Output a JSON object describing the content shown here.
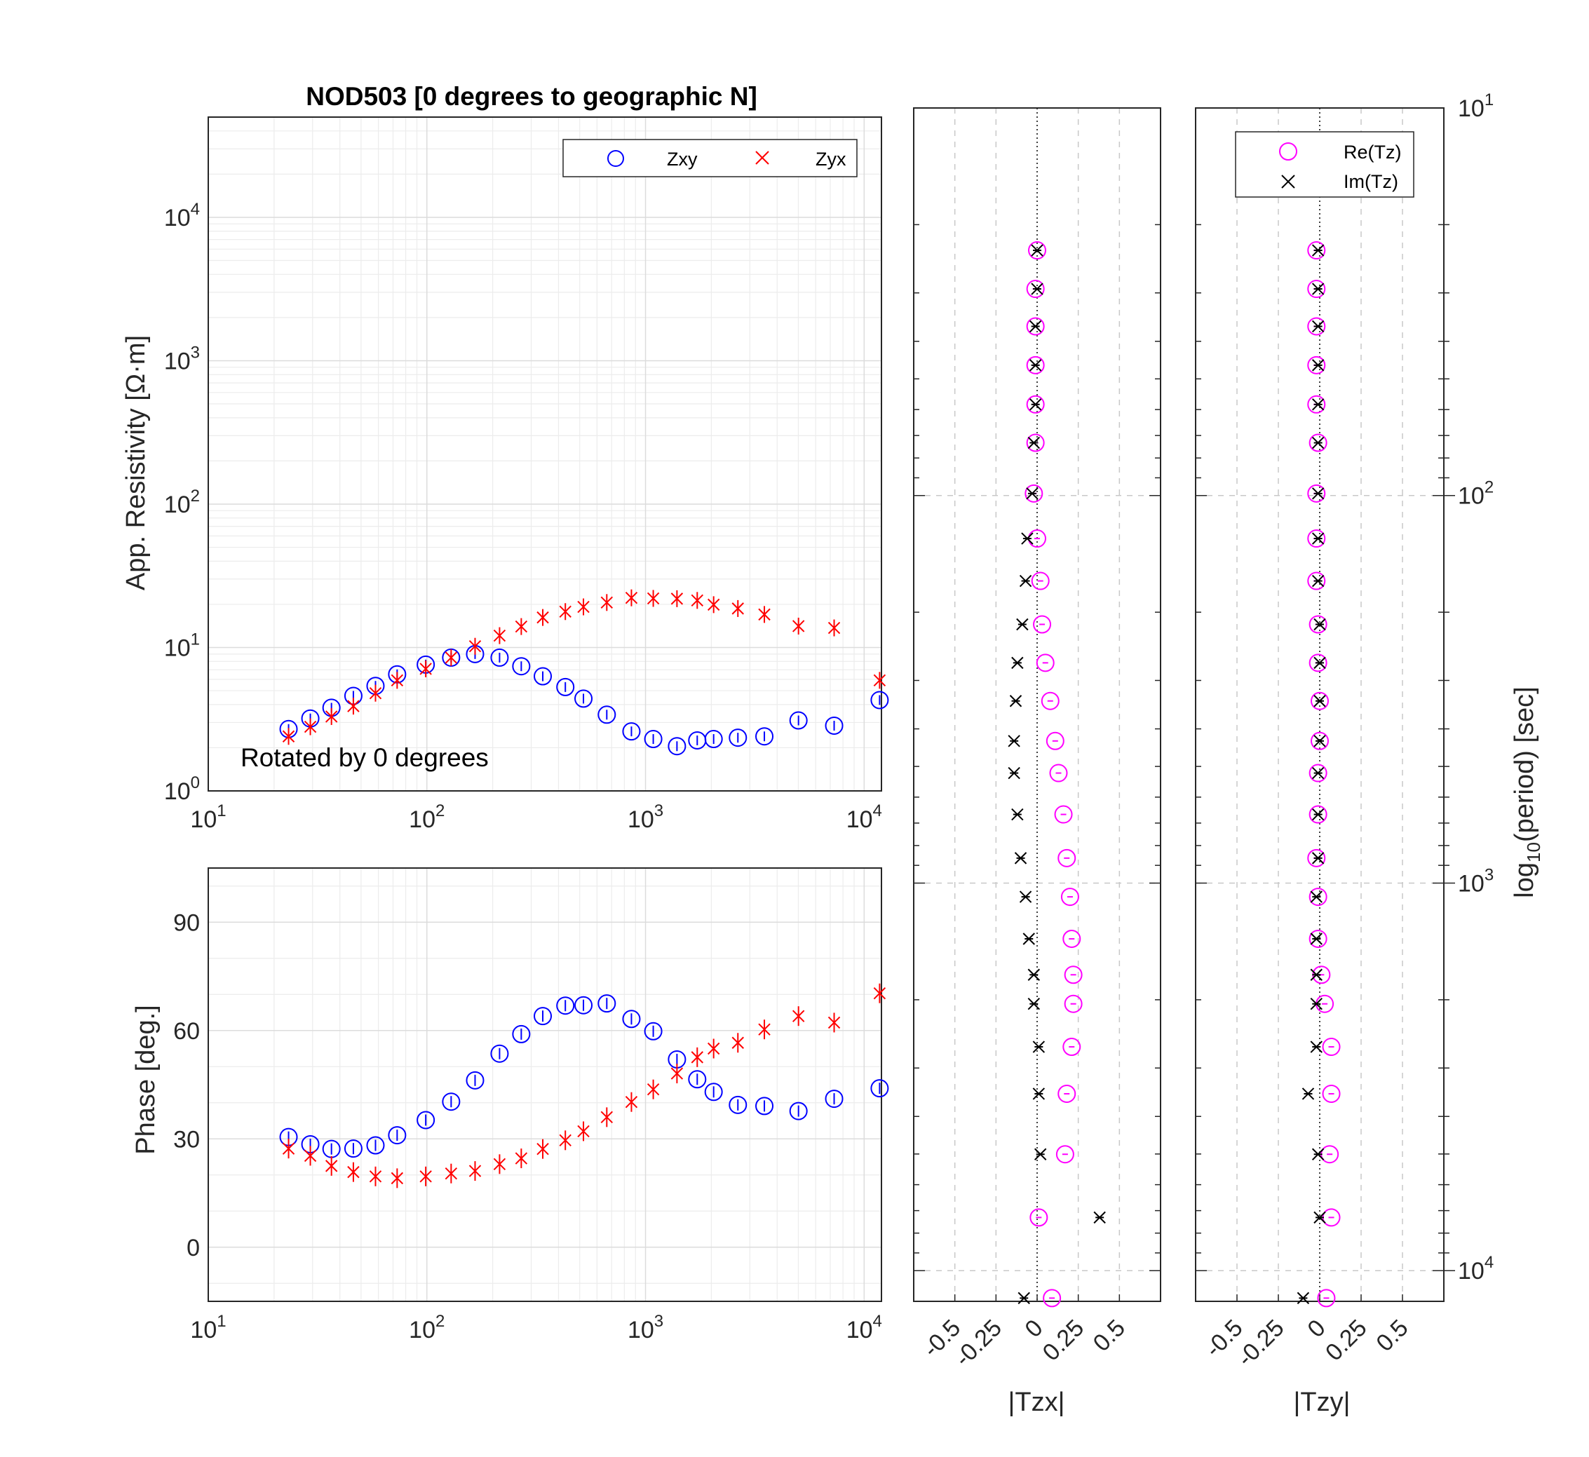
{
  "colors": {
    "zxy": "#0000ff",
    "zyx": "#ff0000",
    "re": "#ff00ff",
    "im": "#000000",
    "axis": "#262626"
  },
  "titles": {
    "main": "NOD503 [0 degrees to geographic N]",
    "annotation": "Rotated by 0 degrees"
  },
  "labels": {
    "res_ylabel": "App. Resistivity [Ω·m]",
    "phase_ylabel": "Phase [deg.]",
    "tzx_xlabel": "|Tzx|",
    "tzy_xlabel": "|Tzy|",
    "period_label_prefix": "log",
    "period_label_sub": "10",
    "period_label_suffix": "(period) [sec]"
  },
  "legend_res": {
    "zxy": "Zxy",
    "zyx": "Zyx"
  },
  "legend_tipper": {
    "re": "Re(Tz)",
    "im": "Im(Tz)"
  },
  "chart_data": [
    {
      "type": "scatter",
      "name": "resistivity",
      "xscale": "log",
      "yscale": "log",
      "xlim": [
        10,
        12000
      ],
      "ylim": [
        1,
        50000
      ],
      "xticks": [
        10,
        100,
        1000,
        10000
      ],
      "yticks": [
        1,
        10,
        100,
        1000,
        10000
      ],
      "xticklabels": [
        "10^1",
        "10^2",
        "10^3",
        "10^4"
      ],
      "yticklabels": [
        "10^0",
        "10^1",
        "10^2",
        "10^3",
        "10^4"
      ],
      "ylabel": "App. Resistivity [Ω·m]",
      "grid": true,
      "legend_position": "top-right",
      "series": [
        {
          "name": "Zxy",
          "marker": "circle",
          "x": [
            23.3,
            29.3,
            36.6,
            46.1,
            58.2,
            73.1,
            98.8,
            129.1,
            166.1,
            215.0,
            270.2,
            338.9,
            429.8,
            520.1,
            665.0,
            862.1,
            1085.0,
            1392.6,
            1724.1,
            2049.2,
            2645.5,
            3496.5,
            5008.3,
            7290.9,
            11771
          ],
          "y": [
            2.7,
            3.2,
            3.8,
            4.6,
            5.4,
            6.5,
            7.6,
            8.5,
            9.0,
            8.5,
            7.4,
            6.3,
            5.3,
            4.4,
            3.4,
            2.6,
            2.3,
            2.05,
            2.25,
            2.3,
            2.35,
            2.4,
            3.1,
            2.85,
            4.3
          ]
        },
        {
          "name": "Zyx",
          "marker": "x",
          "x": [
            23.3,
            29.3,
            36.6,
            46.1,
            58.2,
            73.1,
            98.8,
            129.1,
            166.1,
            215.0,
            270.2,
            338.9,
            429.8,
            520.1,
            665.0,
            862.1,
            1085.0,
            1392.6,
            1724.1,
            2049.2,
            2645.5,
            3496.5,
            5008.3,
            7290.9,
            11771
          ],
          "y": [
            2.4,
            2.8,
            3.3,
            3.9,
            4.8,
            5.9,
            7.1,
            8.5,
            10.2,
            12.1,
            14.0,
            16.2,
            17.8,
            19.2,
            20.6,
            22.2,
            22.0,
            21.9,
            21.3,
            19.9,
            18.7,
            17.0,
            14.1,
            13.7,
            5.9
          ]
        }
      ]
    },
    {
      "type": "scatter",
      "name": "phase",
      "xscale": "log",
      "xlim": [
        10,
        12000
      ],
      "ylim": [
        -15,
        105
      ],
      "xticks": [
        10,
        100,
        1000,
        10000
      ],
      "xticklabels": [
        "10^1",
        "10^2",
        "10^3",
        "10^4"
      ],
      "yticks": [
        0,
        30,
        60,
        90
      ],
      "ylabel": "Phase [deg.]",
      "grid": true,
      "series": [
        {
          "name": "Zxy",
          "marker": "circle",
          "x": [
            23.3,
            29.3,
            36.6,
            46.1,
            58.2,
            73.1,
            98.8,
            129.1,
            166.1,
            215.0,
            270.2,
            338.9,
            429.8,
            520.1,
            665.0,
            862.1,
            1085.0,
            1392.6,
            1724.1,
            2049.2,
            2645.5,
            3496.5,
            5008.3,
            7290.9,
            11771
          ],
          "y": [
            30.5,
            28.5,
            27.2,
            27.3,
            28.2,
            31.0,
            35.2,
            40.3,
            46.2,
            53.6,
            59.0,
            64.0,
            66.9,
            67.0,
            67.5,
            63.2,
            59.8,
            52.0,
            46.5,
            43.0,
            39.4,
            39.1,
            37.7,
            41.1,
            44.0
          ]
        },
        {
          "name": "Zyx",
          "marker": "x",
          "x": [
            23.3,
            29.3,
            36.6,
            46.1,
            58.2,
            73.1,
            98.8,
            129.1,
            166.1,
            215.0,
            270.2,
            338.9,
            429.8,
            520.1,
            665.0,
            862.1,
            1085.0,
            1392.6,
            1724.1,
            2049.2,
            2645.5,
            3496.5,
            5008.3,
            7290.9,
            11771
          ],
          "y": [
            27.3,
            25.3,
            22.5,
            20.8,
            19.6,
            19.1,
            19.6,
            20.4,
            21.1,
            23.0,
            24.6,
            27.2,
            29.6,
            32.1,
            36.0,
            40.2,
            43.7,
            48.1,
            52.6,
            55.0,
            56.6,
            60.3,
            64.0,
            62.2,
            70.3
          ]
        }
      ]
    },
    {
      "type": "scatter",
      "name": "tipper-tzx",
      "xlim": [
        -0.75,
        0.75
      ],
      "xticks": [
        -0.5,
        -0.25,
        0,
        0.25,
        0.5
      ],
      "xticklabels": [
        "-0.5",
        "-0.25",
        "0",
        "0.25",
        "0.5"
      ],
      "xlabel": "|Tzx|",
      "yscale": "log",
      "yreversed": true,
      "ylim": [
        10,
        12000
      ],
      "series": [
        {
          "name": "Re(Tz)",
          "marker": "circle",
          "period": [
            23.3,
            29.3,
            36.6,
            46.1,
            58.2,
            73.1,
            98.8,
            129.1,
            166.1,
            215.0,
            270.2,
            338.9,
            429.8,
            520.1,
            665.0,
            862.1,
            1085.0,
            1392.6,
            1724.1,
            2049.2,
            2645.5,
            3496.5,
            5008.3,
            7290.9,
            11771
          ],
          "value": [
            0.0,
            -0.01,
            -0.01,
            -0.01,
            -0.01,
            -0.01,
            -0.02,
            0.0,
            0.02,
            0.03,
            0.05,
            0.08,
            0.11,
            0.13,
            0.16,
            0.18,
            0.2,
            0.21,
            0.22,
            0.22,
            0.21,
            0.18,
            0.17,
            0.01,
            0.09
          ]
        },
        {
          "name": "Im(Tz)",
          "marker": "x",
          "period": [
            23.3,
            29.3,
            36.6,
            46.1,
            58.2,
            73.1,
            98.8,
            129.1,
            166.1,
            215.0,
            270.2,
            338.9,
            429.8,
            520.1,
            665.0,
            862.1,
            1085.0,
            1392.6,
            1724.1,
            2049.2,
            2645.5,
            3496.5,
            5008.3,
            7290.9,
            11771
          ],
          "value": [
            0.0,
            0.0,
            -0.01,
            -0.01,
            -0.01,
            -0.02,
            -0.03,
            -0.06,
            -0.07,
            -0.09,
            -0.12,
            -0.13,
            -0.14,
            -0.14,
            -0.12,
            -0.1,
            -0.07,
            -0.05,
            -0.02,
            -0.02,
            0.01,
            0.01,
            0.02,
            0.38,
            -0.08
          ]
        }
      ]
    },
    {
      "type": "scatter",
      "name": "tipper-tzy",
      "xlim": [
        -0.75,
        0.75
      ],
      "xticks": [
        -0.5,
        -0.25,
        0,
        0.25,
        0.5
      ],
      "xticklabels": [
        "-0.5",
        "-0.25",
        "0",
        "0.25",
        "0.5"
      ],
      "xlabel": "|Tzy|",
      "yscale": "log",
      "yreversed": true,
      "ylim": [
        10,
        12000
      ],
      "yticks": [
        10,
        100,
        1000,
        10000
      ],
      "yticklabels": [
        "10^1",
        "10^2",
        "10^3",
        "10^4"
      ],
      "legend_position": "top-right",
      "series": [
        {
          "name": "Re(Tz)",
          "marker": "circle",
          "period": [
            23.3,
            29.3,
            36.6,
            46.1,
            58.2,
            73.1,
            98.8,
            129.1,
            166.1,
            215.0,
            270.2,
            338.9,
            429.8,
            520.1,
            665.0,
            862.1,
            1085.0,
            1392.6,
            1724.1,
            2049.2,
            2645.5,
            3496.5,
            5008.3,
            7290.9,
            11771
          ],
          "value": [
            -0.02,
            -0.02,
            -0.02,
            -0.02,
            -0.02,
            -0.01,
            -0.02,
            -0.02,
            -0.02,
            -0.01,
            -0.01,
            0.0,
            0.0,
            -0.01,
            -0.01,
            -0.02,
            -0.01,
            -0.01,
            0.01,
            0.03,
            0.07,
            0.07,
            0.06,
            0.07,
            0.04
          ]
        },
        {
          "name": "Im(Tz)",
          "marker": "x",
          "period": [
            23.3,
            29.3,
            36.6,
            46.1,
            58.2,
            73.1,
            98.8,
            129.1,
            166.1,
            215.0,
            270.2,
            338.9,
            429.8,
            520.1,
            665.0,
            862.1,
            1085.0,
            1392.6,
            1724.1,
            2049.2,
            2645.5,
            3496.5,
            5008.3,
            7290.9,
            11771
          ],
          "value": [
            -0.01,
            -0.01,
            -0.01,
            -0.01,
            -0.01,
            -0.01,
            -0.01,
            -0.01,
            -0.01,
            0.0,
            0.0,
            0.0,
            0.0,
            -0.01,
            -0.01,
            -0.01,
            -0.02,
            -0.02,
            -0.02,
            -0.02,
            -0.02,
            -0.07,
            -0.01,
            0.0,
            -0.1
          ]
        }
      ]
    }
  ]
}
